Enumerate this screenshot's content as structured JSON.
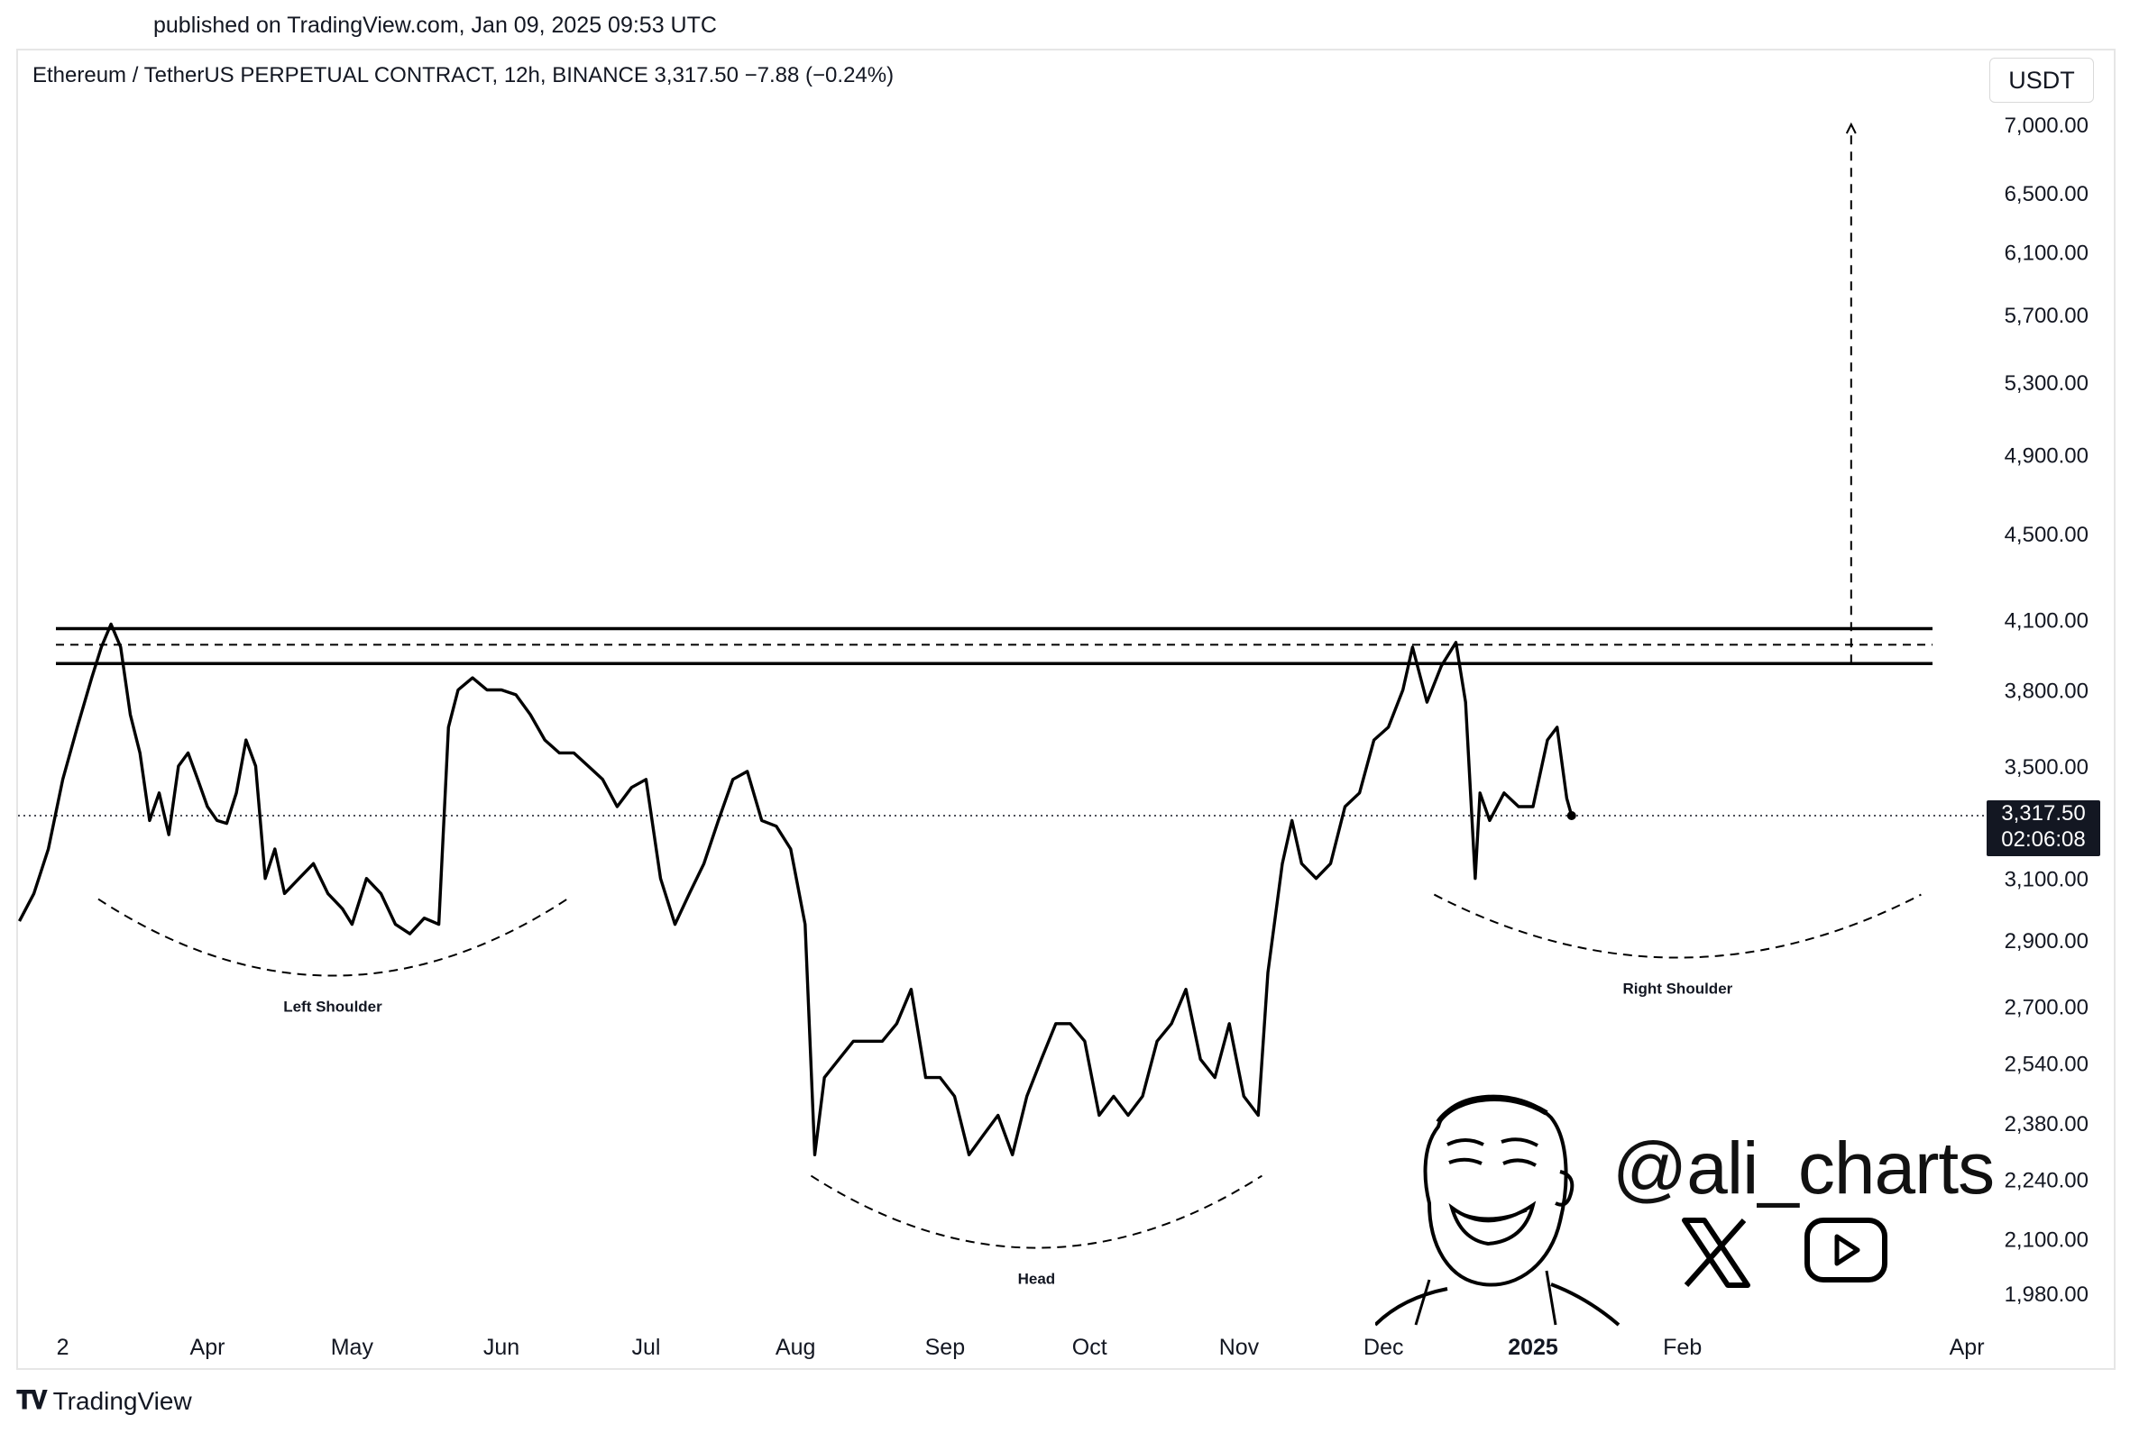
{
  "header": {
    "published": "published on TradingView.com, Jan 09, 2025 09:53 UTC",
    "symbol_line": "Ethereum / TetherUS PERPETUAL CONTRACT, 12h, BINANCE  3,317.50  −7.88 (−0.24%)"
  },
  "currency_button": "USDT",
  "last_price": {
    "price": "3,317.50",
    "countdown": "02:06:08"
  },
  "watermark": {
    "handle": "@ali_charts",
    "icons": [
      "x-logo-icon",
      "youtube-icon",
      "avatar-illustration"
    ]
  },
  "footer": {
    "brand": "TradingView"
  },
  "chart_data": {
    "type": "line",
    "y_scale": "log",
    "y_ticks": [
      "7,000.00",
      "6,500.00",
      "6,100.00",
      "5,700.00",
      "5,300.00",
      "4,900.00",
      "4,500.00",
      "4,100.00",
      "3,800.00",
      "3,500.00",
      "3,100.00",
      "2,900.00",
      "2,700.00",
      "2,540.00",
      "2,380.00",
      "2,240.00",
      "2,100.00",
      "1,980.00"
    ],
    "y_tick_values": [
      7000,
      6500,
      6100,
      5700,
      5300,
      4900,
      4500,
      4100,
      3800,
      3500,
      3100,
      2900,
      2700,
      2540,
      2380,
      2240,
      2100,
      1980
    ],
    "x_ticks": [
      "2",
      "Apr",
      "May",
      "Jun",
      "Jul",
      "Aug",
      "Sep",
      "Oct",
      "Nov",
      "Dec",
      "2025",
      "Feb",
      "Apr"
    ],
    "x_tick_dates": [
      "2024-03-02",
      "2024-04-01",
      "2024-05-01",
      "2024-06-01",
      "2024-07-01",
      "2024-08-01",
      "2024-09-01",
      "2024-10-01",
      "2024-11-01",
      "2024-12-01",
      "2025-01-01",
      "2025-02-01",
      "2025-04-01"
    ],
    "series": [
      {
        "points": [
          [
            "2024-02-22",
            2960
          ],
          [
            "2024-02-25",
            3050
          ],
          [
            "2024-02-28",
            3200
          ],
          [
            "2024-03-02",
            3450
          ],
          [
            "2024-03-05",
            3650
          ],
          [
            "2024-03-08",
            3850
          ],
          [
            "2024-03-10",
            3980
          ],
          [
            "2024-03-12",
            4080
          ],
          [
            "2024-03-14",
            3980
          ],
          [
            "2024-03-16",
            3700
          ],
          [
            "2024-03-18",
            3550
          ],
          [
            "2024-03-20",
            3300
          ],
          [
            "2024-03-22",
            3400
          ],
          [
            "2024-03-24",
            3250
          ],
          [
            "2024-03-26",
            3500
          ],
          [
            "2024-03-28",
            3550
          ],
          [
            "2024-03-30",
            3450
          ],
          [
            "2024-04-01",
            3350
          ],
          [
            "2024-04-03",
            3300
          ],
          [
            "2024-04-05",
            3290
          ],
          [
            "2024-04-07",
            3400
          ],
          [
            "2024-04-09",
            3600
          ],
          [
            "2024-04-11",
            3500
          ],
          [
            "2024-04-13",
            3100
          ],
          [
            "2024-04-15",
            3200
          ],
          [
            "2024-04-17",
            3050
          ],
          [
            "2024-04-20",
            3100
          ],
          [
            "2024-04-23",
            3150
          ],
          [
            "2024-04-26",
            3050
          ],
          [
            "2024-04-29",
            3000
          ],
          [
            "2024-05-01",
            2950
          ],
          [
            "2024-05-04",
            3100
          ],
          [
            "2024-05-07",
            3050
          ],
          [
            "2024-05-10",
            2950
          ],
          [
            "2024-05-13",
            2920
          ],
          [
            "2024-05-16",
            2970
          ],
          [
            "2024-05-19",
            2950
          ],
          [
            "2024-05-21",
            3650
          ],
          [
            "2024-05-23",
            3800
          ],
          [
            "2024-05-26",
            3850
          ],
          [
            "2024-05-29",
            3800
          ],
          [
            "2024-06-01",
            3800
          ],
          [
            "2024-06-04",
            3780
          ],
          [
            "2024-06-07",
            3700
          ],
          [
            "2024-06-10",
            3600
          ],
          [
            "2024-06-13",
            3550
          ],
          [
            "2024-06-16",
            3550
          ],
          [
            "2024-06-19",
            3500
          ],
          [
            "2024-06-22",
            3450
          ],
          [
            "2024-06-25",
            3350
          ],
          [
            "2024-06-28",
            3420
          ],
          [
            "2024-07-01",
            3450
          ],
          [
            "2024-07-04",
            3100
          ],
          [
            "2024-07-07",
            2950
          ],
          [
            "2024-07-10",
            3050
          ],
          [
            "2024-07-13",
            3150
          ],
          [
            "2024-07-16",
            3300
          ],
          [
            "2024-07-19",
            3450
          ],
          [
            "2024-07-22",
            3480
          ],
          [
            "2024-07-25",
            3300
          ],
          [
            "2024-07-28",
            3280
          ],
          [
            "2024-07-31",
            3200
          ],
          [
            "2024-08-03",
            2950
          ],
          [
            "2024-08-05",
            2300
          ],
          [
            "2024-08-07",
            2500
          ],
          [
            "2024-08-10",
            2550
          ],
          [
            "2024-08-13",
            2600
          ],
          [
            "2024-08-16",
            2600
          ],
          [
            "2024-08-19",
            2600
          ],
          [
            "2024-08-22",
            2650
          ],
          [
            "2024-08-25",
            2750
          ],
          [
            "2024-08-28",
            2500
          ],
          [
            "2024-08-31",
            2500
          ],
          [
            "2024-09-03",
            2450
          ],
          [
            "2024-09-06",
            2300
          ],
          [
            "2024-09-09",
            2350
          ],
          [
            "2024-09-12",
            2400
          ],
          [
            "2024-09-15",
            2300
          ],
          [
            "2024-09-18",
            2450
          ],
          [
            "2024-09-21",
            2550
          ],
          [
            "2024-09-24",
            2650
          ],
          [
            "2024-09-27",
            2650
          ],
          [
            "2024-09-30",
            2600
          ],
          [
            "2024-10-03",
            2400
          ],
          [
            "2024-10-06",
            2450
          ],
          [
            "2024-10-09",
            2400
          ],
          [
            "2024-10-12",
            2450
          ],
          [
            "2024-10-15",
            2600
          ],
          [
            "2024-10-18",
            2650
          ],
          [
            "2024-10-21",
            2750
          ],
          [
            "2024-10-24",
            2550
          ],
          [
            "2024-10-27",
            2500
          ],
          [
            "2024-10-30",
            2650
          ],
          [
            "2024-11-02",
            2450
          ],
          [
            "2024-11-05",
            2400
          ],
          [
            "2024-11-07",
            2800
          ],
          [
            "2024-11-10",
            3150
          ],
          [
            "2024-11-12",
            3300
          ],
          [
            "2024-11-14",
            3150
          ],
          [
            "2024-11-17",
            3100
          ],
          [
            "2024-11-20",
            3150
          ],
          [
            "2024-11-23",
            3350
          ],
          [
            "2024-11-26",
            3400
          ],
          [
            "2024-11-29",
            3600
          ],
          [
            "2024-12-02",
            3650
          ],
          [
            "2024-12-05",
            3800
          ],
          [
            "2024-12-07",
            3980
          ],
          [
            "2024-12-10",
            3750
          ],
          [
            "2024-12-13",
            3900
          ],
          [
            "2024-12-16",
            4000
          ],
          [
            "2024-12-18",
            3750
          ],
          [
            "2024-12-20",
            3100
          ],
          [
            "2024-12-21",
            3400
          ],
          [
            "2024-12-23",
            3300
          ],
          [
            "2024-12-26",
            3400
          ],
          [
            "2024-12-29",
            3350
          ],
          [
            "2025-01-01",
            3350
          ],
          [
            "2025-01-04",
            3600
          ],
          [
            "2025-01-06",
            3650
          ],
          [
            "2025-01-08",
            3380
          ],
          [
            "2025-01-09",
            3317.5
          ]
        ]
      }
    ],
    "levels": {
      "resistance_top": 4060,
      "resistance_mid": 3990,
      "resistance_bottom": 3910
    },
    "target": {
      "from": 3910,
      "to": 7000,
      "date": "2025-03-08"
    },
    "annotations": [
      {
        "label": "Left Shoulder",
        "date": "2024-04-27",
        "price": 2700
      },
      {
        "label": "Head",
        "date": "2024-09-20",
        "price": 1960
      },
      {
        "label": "Right Shoulder",
        "date": "2025-01-31",
        "price": 2700
      }
    ]
  }
}
